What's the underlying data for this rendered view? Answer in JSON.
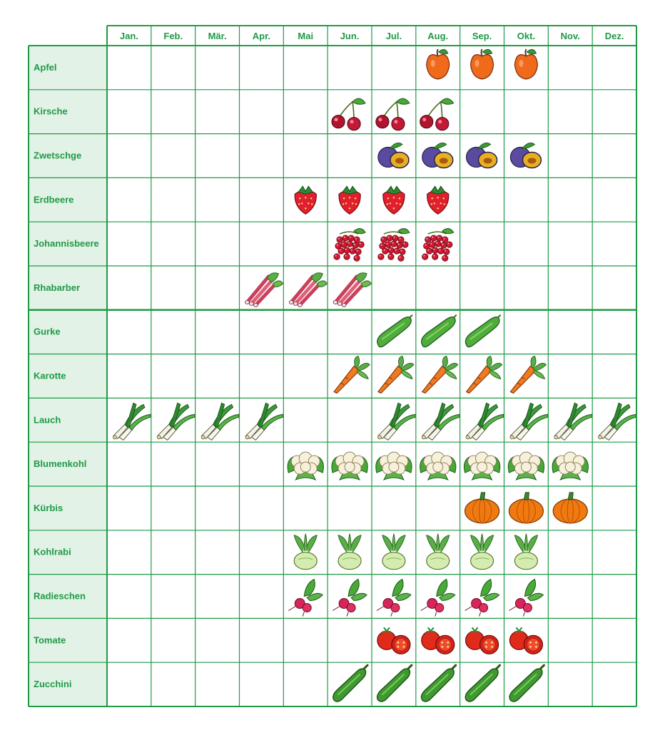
{
  "chart_data": {
    "type": "table",
    "title": "",
    "columns": [
      "Jan.",
      "Feb.",
      "Mär.",
      "Apr.",
      "Mai",
      "Jun.",
      "Jul.",
      "Aug.",
      "Sep.",
      "Okt.",
      "Nov.",
      "Dez."
    ],
    "groups": [
      {
        "rows": [
          {
            "label": "Apfel",
            "icon": "apple-icon",
            "months": [
              8,
              9,
              10
            ]
          },
          {
            "label": "Kirsche",
            "icon": "cherry-icon",
            "months": [
              6,
              7,
              8
            ]
          },
          {
            "label": "Zwetschge",
            "icon": "plum-icon",
            "months": [
              7,
              8,
              9,
              10
            ]
          },
          {
            "label": "Erdbeere",
            "icon": "strawberry-icon",
            "months": [
              5,
              6,
              7,
              8
            ]
          },
          {
            "label": "Johannisbeere",
            "icon": "currant-icon",
            "months": [
              6,
              7,
              8
            ]
          },
          {
            "label": "Rhabarber",
            "icon": "rhubarb-icon",
            "months": [
              4,
              5,
              6
            ]
          }
        ]
      },
      {
        "rows": [
          {
            "label": "Gurke",
            "icon": "cucumber-icon",
            "months": [
              7,
              8,
              9
            ]
          },
          {
            "label": "Karotte",
            "icon": "carrot-icon",
            "months": [
              6,
              7,
              8,
              9,
              10
            ]
          },
          {
            "label": "Lauch",
            "icon": "leek-icon",
            "months": [
              1,
              2,
              3,
              4,
              7,
              8,
              9,
              10,
              11,
              12
            ]
          },
          {
            "label": "Blumenkohl",
            "icon": "cauliflower-icon",
            "months": [
              5,
              6,
              7,
              8,
              9,
              10,
              11
            ]
          },
          {
            "label": "Kürbis",
            "icon": "pumpkin-icon",
            "months": [
              9,
              10,
              11
            ]
          },
          {
            "label": "Kohlrabi",
            "icon": "kohlrabi-icon",
            "months": [
              5,
              6,
              7,
              8,
              9,
              10
            ]
          },
          {
            "label": "Radieschen",
            "icon": "radish-icon",
            "months": [
              5,
              6,
              7,
              8,
              9,
              10
            ]
          },
          {
            "label": "Tomate",
            "icon": "tomato-icon",
            "months": [
              7,
              8,
              9,
              10
            ]
          },
          {
            "label": "Zucchini",
            "icon": "zucchini-icon",
            "months": [
              6,
              7,
              8,
              9,
              10
            ]
          }
        ]
      }
    ],
    "colors": {
      "grid": "#1f9a46",
      "label_text": "#1f9a46",
      "label_bg": "#e3f2e6"
    }
  }
}
